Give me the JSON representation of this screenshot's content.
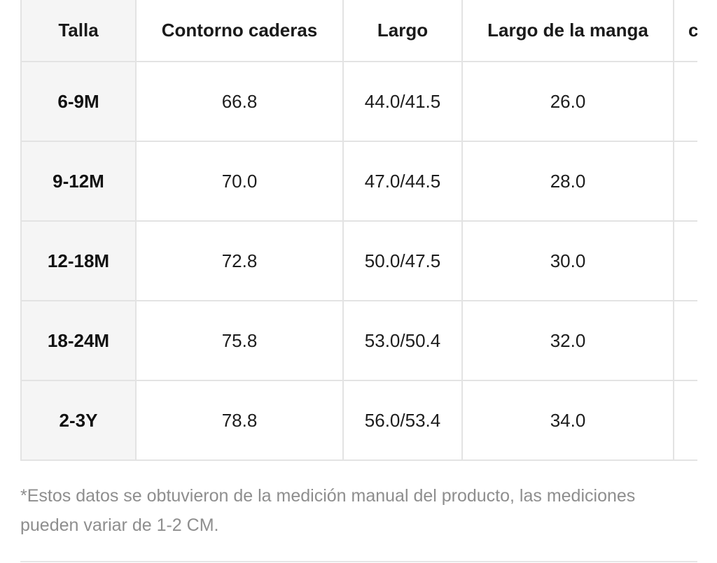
{
  "size_table": {
    "headers": [
      "Talla",
      "Contorno caderas",
      "Largo",
      "Largo de la manga",
      "c"
    ],
    "rows": [
      {
        "talla": "6-9M",
        "contorno_caderas": "66.8",
        "largo": "44.0/41.5",
        "largo_manga": "26.0",
        "extra": ""
      },
      {
        "talla": "9-12M",
        "contorno_caderas": "70.0",
        "largo": "47.0/44.5",
        "largo_manga": "28.0",
        "extra": ""
      },
      {
        "talla": "12-18M",
        "contorno_caderas": "72.8",
        "largo": "50.0/47.5",
        "largo_manga": "30.0",
        "extra": ""
      },
      {
        "talla": "18-24M",
        "contorno_caderas": "75.8",
        "largo": "53.0/50.4",
        "largo_manga": "32.0",
        "extra": ""
      },
      {
        "talla": "2-3Y",
        "contorno_caderas": "78.8",
        "largo": "56.0/53.4",
        "largo_manga": "34.0",
        "extra": ""
      }
    ]
  },
  "footnote": "*Estos datos se obtuvieron de la medición manual del producto, las mediciones pueden variar de 1-2 CM.",
  "colors": {
    "border": "#e3e3e3",
    "first_column_bg": "#f5f5f5",
    "text": "#111111",
    "footnote_text": "#8e8e8e"
  }
}
